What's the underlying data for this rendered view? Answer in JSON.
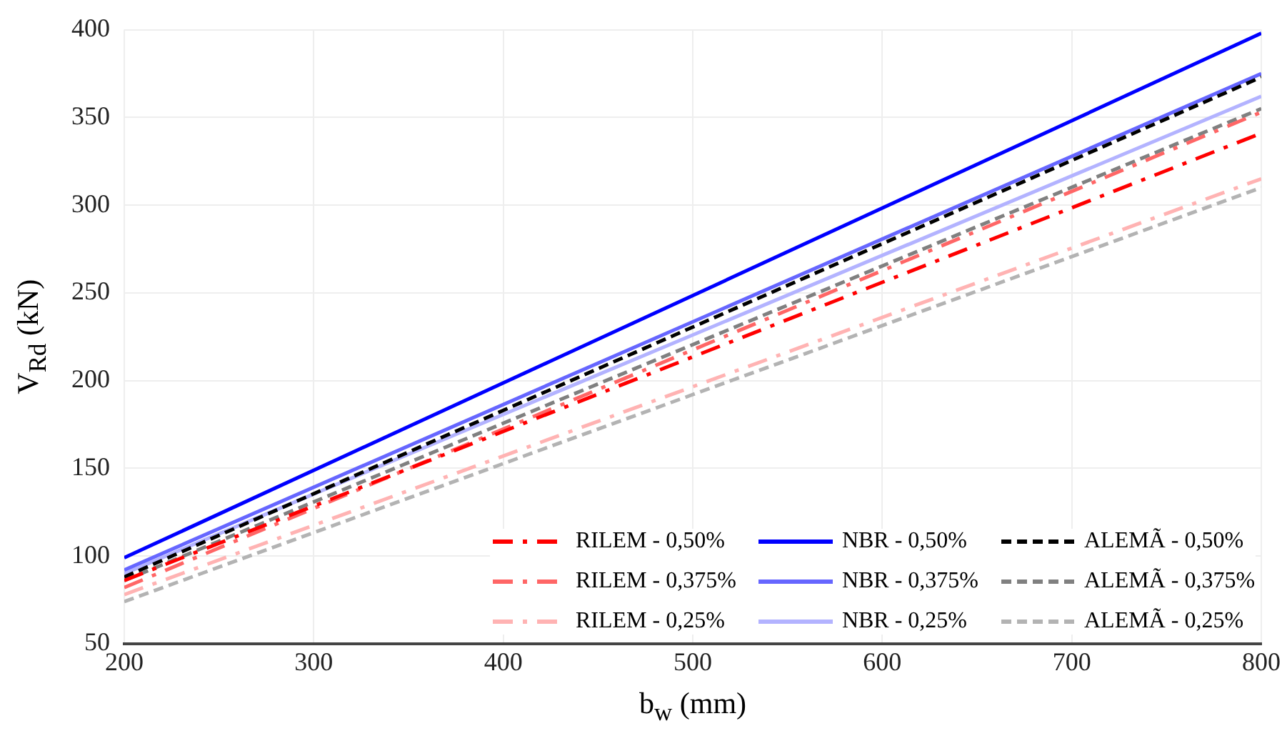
{
  "chart_data": {
    "type": "line",
    "xlabel": "b$_{w}$ (mm)",
    "ylabel": "V$_{Rd}$ (kN)",
    "x": [
      200,
      800
    ],
    "xlim": [
      200,
      800
    ],
    "xticks": [
      200,
      300,
      400,
      500,
      600,
      700,
      800
    ],
    "ylim": [
      50,
      400
    ],
    "yticks": [
      50,
      100,
      150,
      200,
      250,
      300,
      350,
      400
    ],
    "grid": true,
    "legend": "bottom right",
    "marker": "none",
    "series": [
      {
        "name": "RILEM - 0,50%",
        "color": "#ff0000",
        "line_style": "dashdot",
        "values": [
          86,
          341
        ]
      },
      {
        "name": "NBR - 0,50%",
        "color": "#0000ff",
        "line_style": "solid",
        "values": [
          99,
          398
        ]
      },
      {
        "name": "ALEMÃ - 0,50%",
        "color": "#000000",
        "line_style": "dashed",
        "values": [
          88,
          373
        ]
      },
      {
        "name": "RILEM - 0,375%",
        "color": "#ff6666",
        "line_style": "dashdot",
        "values": [
          82,
          353
        ]
      },
      {
        "name": "NBR - 0,375%",
        "color": "#6666ff",
        "line_style": "solid",
        "values": [
          92,
          375
        ]
      },
      {
        "name": "ALEMÃ - 0,375%",
        "color": "#808080",
        "line_style": "dashed",
        "values": [
          86,
          355
        ]
      },
      {
        "name": "RILEM - 0,25%",
        "color": "#ffb3b3",
        "line_style": "dashdot",
        "values": [
          78,
          315
        ]
      },
      {
        "name": "NBR - 0,25%",
        "color": "#b3b3ff",
        "line_style": "solid",
        "values": [
          90,
          362
        ]
      },
      {
        "name": "ALEMÃ - 0,25%",
        "color": "#b3b3b3",
        "line_style": "dashed",
        "values": [
          74,
          310
        ]
      }
    ]
  }
}
